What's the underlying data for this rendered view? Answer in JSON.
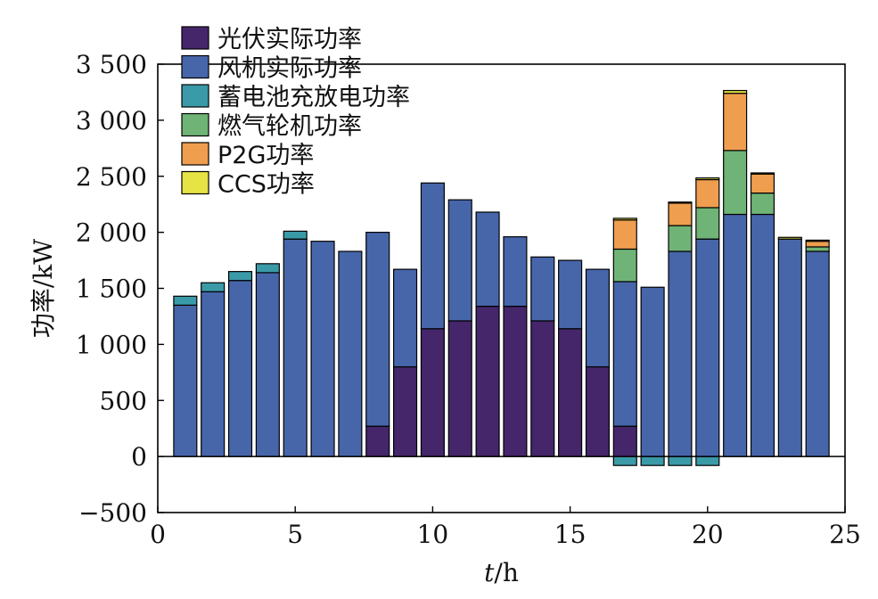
{
  "chart_data": {
    "type": "bar",
    "stacked": true,
    "xlabel_italic": "t",
    "xlabel_unit": "/h",
    "ylabel": "功率/kW",
    "xlim": [
      0,
      25
    ],
    "ylim": [
      -500,
      3500
    ],
    "x_ticks": [
      0,
      5,
      10,
      15,
      20,
      25
    ],
    "x_tick_labels": [
      "0",
      "5",
      "10",
      "15",
      "20",
      "25"
    ],
    "y_ticks": [
      -500,
      0,
      500,
      1000,
      1500,
      2000,
      2500,
      3000,
      3500
    ],
    "y_tick_labels": [
      "−500",
      "0",
      "500",
      "1 000",
      "1 500",
      "2 000",
      "2 500",
      "3 000",
      "3 500"
    ],
    "legend_position": "top-left",
    "grid": false,
    "x": [
      1,
      2,
      3,
      4,
      5,
      6,
      7,
      8,
      9,
      10,
      11,
      12,
      13,
      14,
      15,
      16,
      17,
      18,
      19,
      20,
      21,
      22,
      23,
      24
    ],
    "series": [
      {
        "name": "光伏实际功率",
        "color": "#45266b",
        "values": [
          0,
          0,
          0,
          0,
          0,
          0,
          0,
          270,
          800,
          1140,
          1210,
          1340,
          1340,
          1210,
          1140,
          800,
          270,
          0,
          0,
          0,
          0,
          0,
          0,
          0
        ]
      },
      {
        "name": "风机实际功率",
        "color": "#4766aa",
        "values": [
          1350,
          1470,
          1570,
          1640,
          1940,
          1920,
          1830,
          1730,
          870,
          1300,
          1080,
          840,
          620,
          570,
          610,
          870,
          1290,
          1510,
          1830,
          1940,
          2160,
          2160,
          1940,
          1830
        ]
      },
      {
        "name": "蓄电池充放电功率",
        "color": "#3b9aa8",
        "values": [
          80,
          80,
          80,
          80,
          70,
          0,
          0,
          0,
          0,
          0,
          0,
          0,
          0,
          0,
          0,
          0,
          -80,
          -80,
          -80,
          -80,
          0,
          0,
          0,
          0
        ]
      },
      {
        "name": "燃气轮机功率",
        "color": "#6fb476",
        "values": [
          0,
          0,
          0,
          0,
          0,
          0,
          0,
          0,
          0,
          0,
          0,
          0,
          0,
          0,
          0,
          0,
          290,
          0,
          230,
          280,
          570,
          190,
          0,
          40
        ]
      },
      {
        "name": "P2G功率",
        "color": "#ef9e4f",
        "values": [
          0,
          0,
          0,
          0,
          0,
          0,
          0,
          0,
          0,
          0,
          0,
          0,
          0,
          0,
          0,
          0,
          260,
          0,
          200,
          250,
          510,
          170,
          0,
          50
        ]
      },
      {
        "name": "CCS功率",
        "color": "#e6e344",
        "values": [
          0,
          0,
          0,
          0,
          0,
          0,
          0,
          0,
          0,
          0,
          0,
          0,
          0,
          0,
          0,
          0,
          15,
          0,
          10,
          15,
          25,
          10,
          15,
          10
        ]
      }
    ]
  }
}
